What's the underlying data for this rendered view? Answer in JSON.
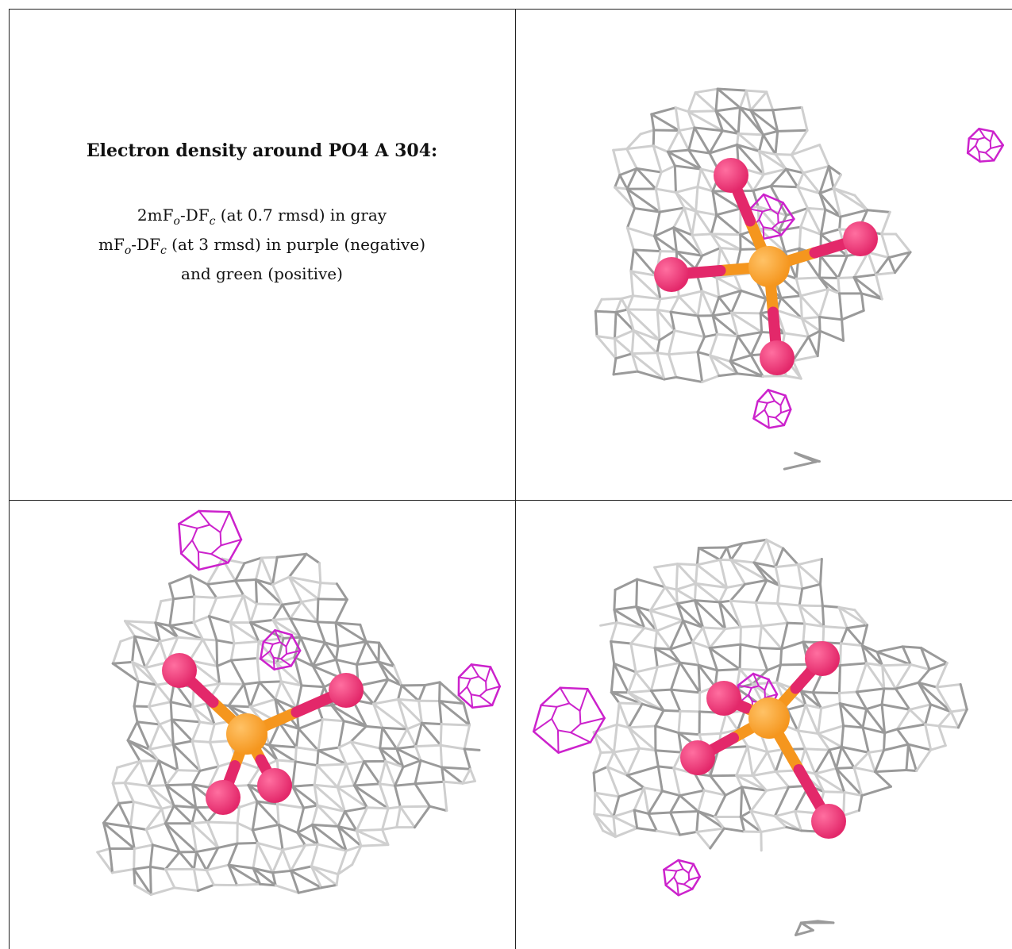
{
  "caption": {
    "title": "Electron density around PO4 A 304:",
    "line1_a": "2mF",
    "line1_o": "o",
    "line1_b": "-DF",
    "line1_c": "c",
    "line1_d": " (at 0.7 rmsd) in gray",
    "line2_a": "mF",
    "line2_o": "o",
    "line2_b": "-DF",
    "line2_c": "c",
    "line2_d": " (at 3 rmsd) in purple (negative)",
    "line3": "and green (positive)"
  },
  "colors": {
    "mesh_gray": "#9a9a9a",
    "mesh_light": "#cfcfcf",
    "difference_negative": "#cc22cc",
    "phosphorus": "#f5961e",
    "oxygen": "#e3286a",
    "border": "#222222"
  },
  "panels": [
    {
      "view": "view-1"
    },
    {
      "view": "view-2"
    },
    {
      "view": "view-3"
    }
  ]
}
